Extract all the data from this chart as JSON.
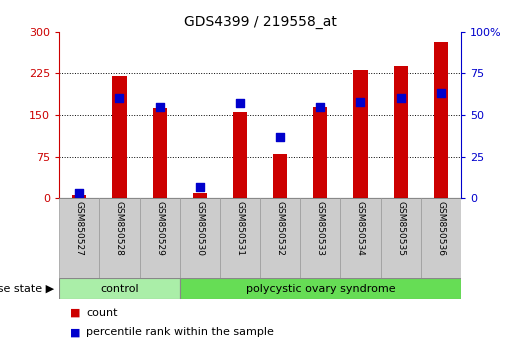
{
  "title": "GDS4399 / 219558_at",
  "samples": [
    "GSM850527",
    "GSM850528",
    "GSM850529",
    "GSM850530",
    "GSM850531",
    "GSM850532",
    "GSM850533",
    "GSM850534",
    "GSM850535",
    "GSM850536"
  ],
  "counts": [
    5,
    220,
    162,
    10,
    155,
    80,
    165,
    232,
    238,
    282
  ],
  "percentiles": [
    3,
    60,
    55,
    7,
    57,
    37,
    55,
    58,
    60,
    63
  ],
  "ylim_left": [
    0,
    300
  ],
  "ylim_right": [
    0,
    100
  ],
  "yticks_left": [
    0,
    75,
    150,
    225,
    300
  ],
  "yticks_right": [
    0,
    25,
    50,
    75,
    100
  ],
  "bar_color": "#cc0000",
  "dot_color": "#0000cc",
  "bar_width": 0.35,
  "dot_size": 28,
  "control_indices": [
    0,
    1,
    2
  ],
  "syndrome_indices": [
    3,
    4,
    5,
    6,
    7,
    8,
    9
  ],
  "control_label": "control",
  "syndrome_label": "polycystic ovary syndrome",
  "disease_state_label": "disease state",
  "legend_count": "count",
  "legend_percentile": "percentile rank within the sample",
  "control_color": "#aaeea8",
  "syndrome_color": "#66dd55",
  "left_axis_color": "#cc0000",
  "right_axis_color": "#0000cc",
  "sample_box_color": "#cccccc",
  "fig_width": 5.15,
  "fig_height": 3.54,
  "dpi": 100
}
